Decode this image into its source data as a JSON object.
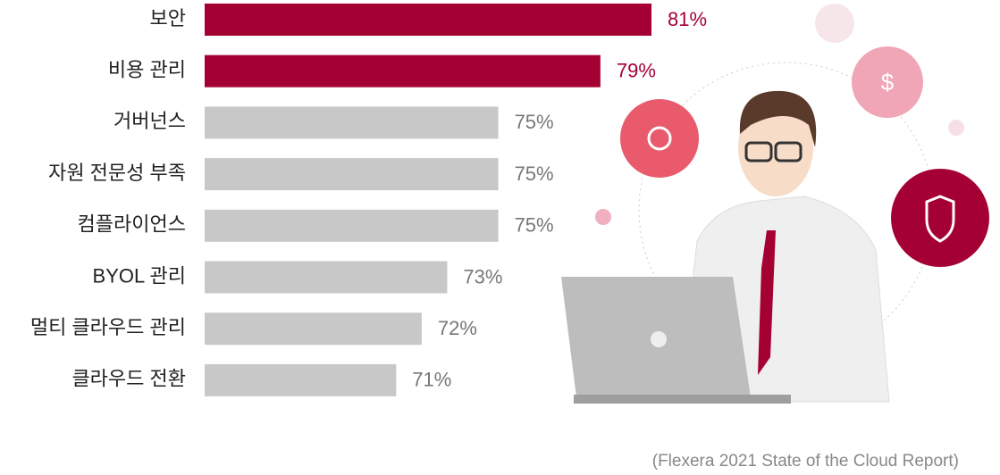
{
  "chart_data": {
    "type": "bar",
    "orientation": "horizontal",
    "categories": [
      "보안",
      "비용 관리",
      "거버넌스",
      "자원 전문성 부족",
      "컴플라이언스",
      "BYOL 관리",
      "멀티 클라우드 관리",
      "클라우드 전환"
    ],
    "values": [
      81,
      79,
      75,
      75,
      75,
      73,
      72,
      71
    ],
    "value_labels": [
      "81%",
      "79%",
      "75%",
      "75%",
      "75%",
      "73%",
      "72%",
      "71%"
    ],
    "colors": [
      "#a50034",
      "#a50034",
      "#c8c8c8",
      "#c8c8c8",
      "#c8c8c8",
      "#c8c8c8",
      "#c8c8c8",
      "#c8c8c8"
    ],
    "label_colors": [
      "#a50034",
      "#a50034",
      "#777777",
      "#777777",
      "#777777",
      "#777777",
      "#777777",
      "#777777"
    ],
    "xlim": [
      63.5,
      81
    ]
  },
  "source": "(Flexera 2021 State of the Cloud Report)"
}
